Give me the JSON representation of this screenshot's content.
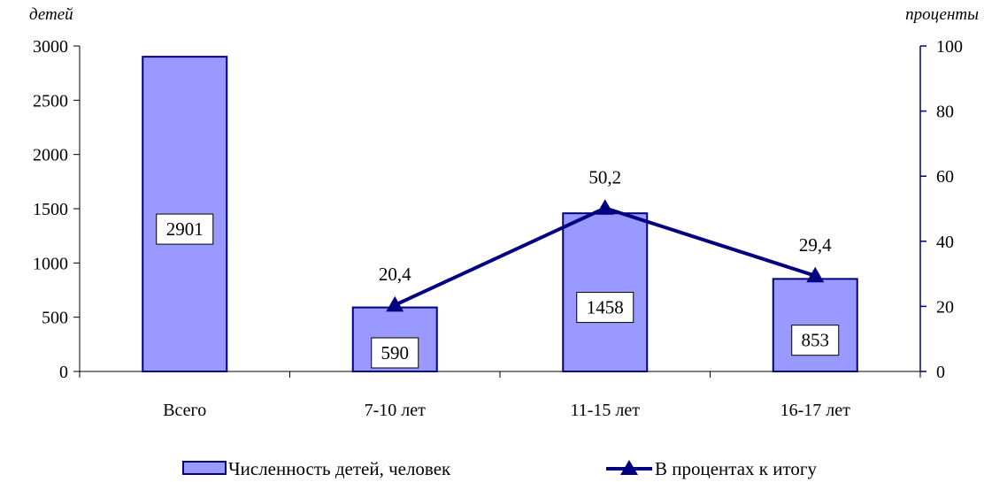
{
  "chart_data": {
    "type": "bar",
    "categories": [
      "Всего",
      "7-10 лет",
      "11-15 лет",
      "16-17 лет"
    ],
    "series": [
      {
        "name": "Численность детей, человек",
        "chart_type": "bar",
        "axis": "left",
        "color": "#9999ff",
        "values": [
          2901,
          590,
          1458,
          853
        ],
        "labels": [
          "2901",
          "590",
          "1458",
          "853"
        ]
      },
      {
        "name": "В процентах к итогу",
        "chart_type": "line",
        "axis": "right",
        "color": "#000080",
        "marker": "triangle",
        "values": [
          null,
          20.4,
          50.2,
          29.4
        ],
        "labels": [
          "",
          "20,4",
          "50,2",
          "29,4"
        ]
      }
    ],
    "y_left": {
      "label": "детей",
      "ylim": [
        0,
        3000
      ],
      "ticks": [
        "0",
        "500",
        "1000",
        "1500",
        "2000",
        "2500",
        "3000"
      ]
    },
    "y_right": {
      "label": "проценты",
      "ylim": [
        0,
        100
      ],
      "ticks": [
        "0",
        "20",
        "40",
        "60",
        "80",
        "100"
      ]
    },
    "grid": false,
    "legend_position": "bottom"
  }
}
